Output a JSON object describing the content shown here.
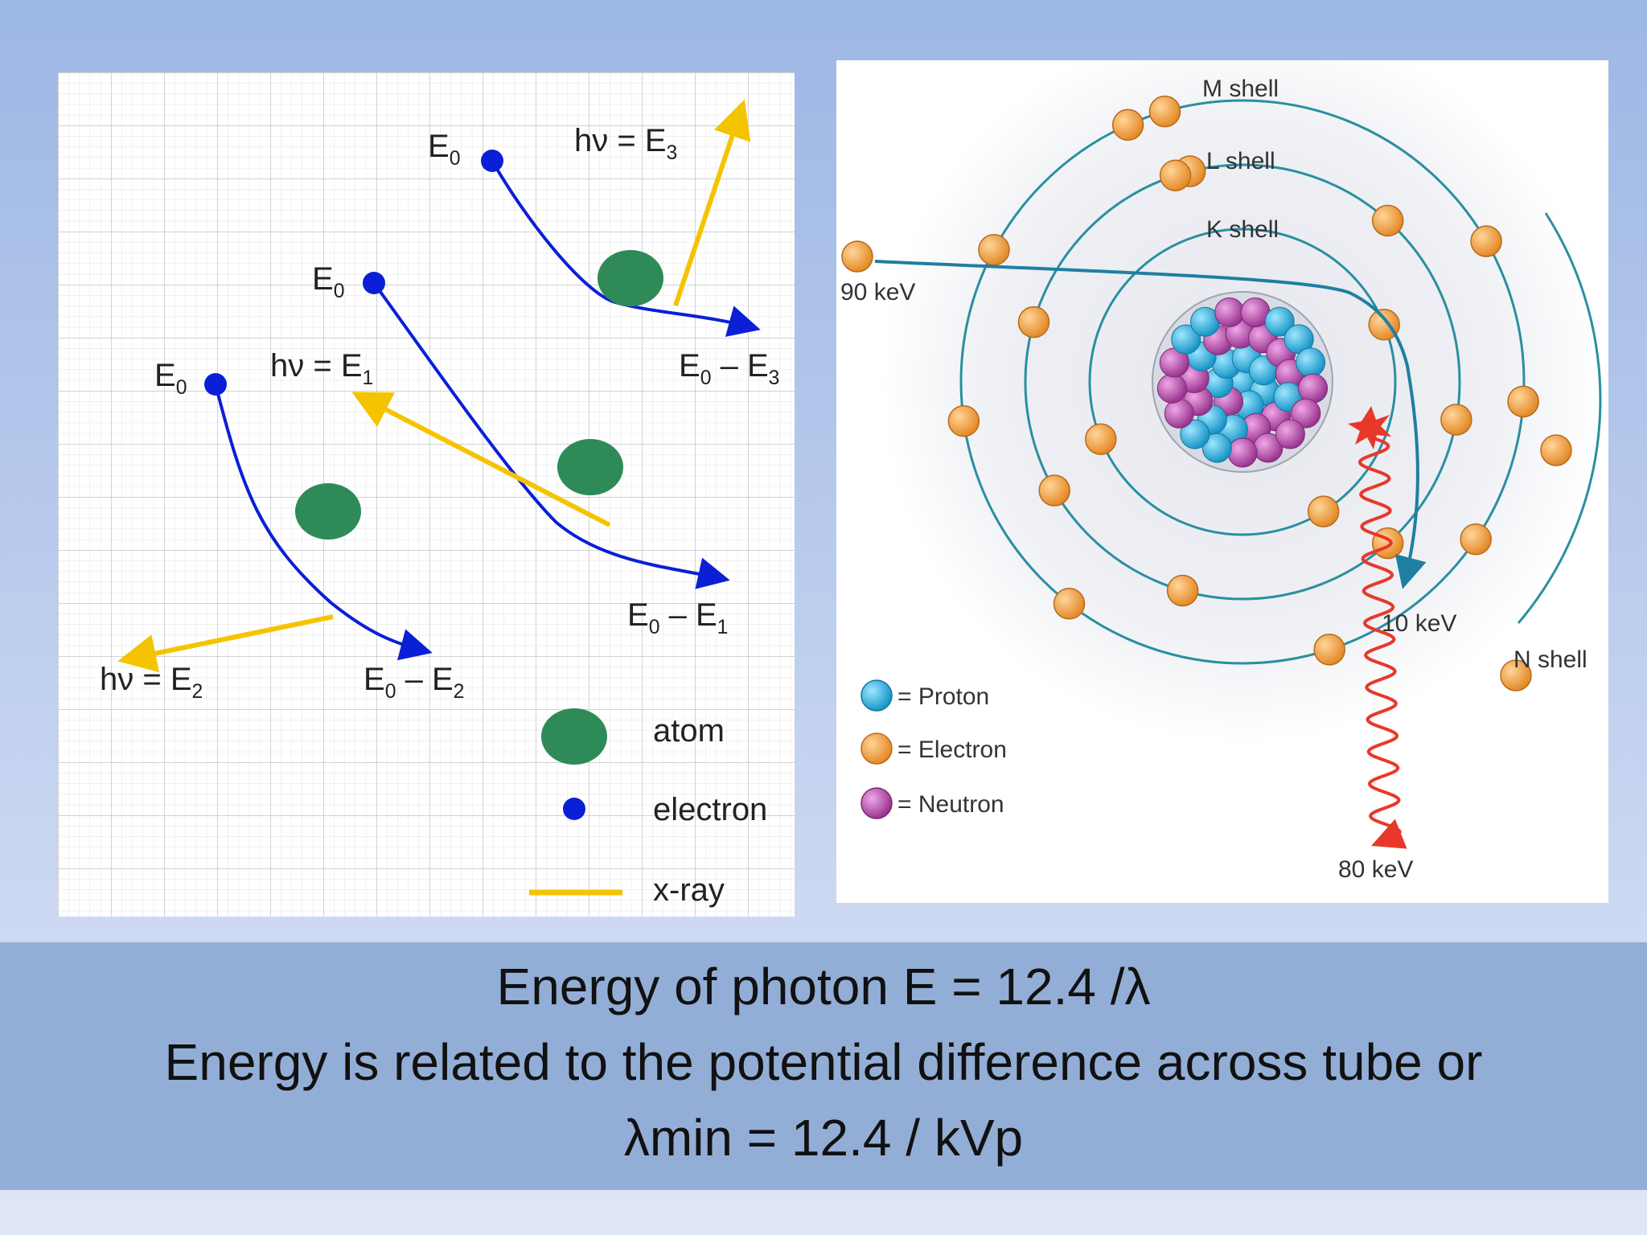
{
  "bremsstrahlung": {
    "labels": {
      "e0_top": "E",
      "e0_mid": "E",
      "e0_left": "E",
      "sub0": "0",
      "hv": "hν = E",
      "sub1": "1",
      "sub2": "2",
      "sub3": "3",
      "e0_minus": "E",
      "minus_e": " – E"
    },
    "legend": {
      "atom": "atom",
      "electron": "electron",
      "xray": "x-ray"
    },
    "colors": {
      "atom": "#2e8b57",
      "electron": "#0a1fd6",
      "xray": "#f5c400"
    }
  },
  "atom_diagram": {
    "shells": {
      "m": "M shell",
      "l": "L shell",
      "k": "K shell",
      "n": "N shell"
    },
    "energies": {
      "incoming": "90 keV",
      "outgoing": "10 keV",
      "photon": "80 keV"
    },
    "legend": {
      "proton": "= Proton",
      "electron": "= Electron",
      "neutron": "= Neutron"
    },
    "colors": {
      "proton": "#22a8d8",
      "electron": "#f0a040",
      "neutron": "#b548a8",
      "shell": "#2a8fa0",
      "photon": "#e8382a"
    }
  },
  "caption": {
    "line1": "Energy of photon E = 12.4 /λ",
    "line2": "Energy is related to the potential difference across tube or",
    "line3": "λmin = 12.4 / kVp"
  }
}
